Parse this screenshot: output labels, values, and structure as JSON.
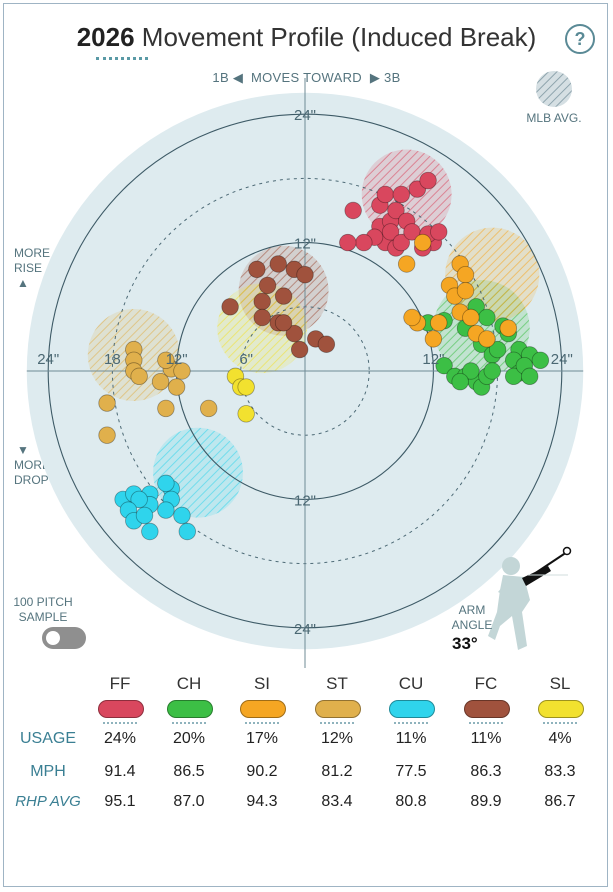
{
  "title": {
    "year": "2026",
    "text": "Movement Profile (Induced Break)"
  },
  "help_label": "?",
  "direction": {
    "left": "1B",
    "middle": "MOVES TOWARD",
    "right": "3B"
  },
  "mlb_avg_label": "MLB AVG.",
  "side_labels": {
    "rise_1": "MORE",
    "rise_2": "RISE",
    "drop_1": "MORE",
    "drop_2": "DROP"
  },
  "sample": {
    "line1": "100 PITCH",
    "line2": "SAMPLE"
  },
  "arm_angle": {
    "line1": "ARM",
    "line2": "ANGLE",
    "value": "33°"
  },
  "chart_data": {
    "type": "scatter",
    "title": "2026 Movement Profile (Induced Break)",
    "xlim": [
      -26,
      26
    ],
    "ylim": [
      -26,
      26
    ],
    "rings": [
      6,
      12,
      18,
      24
    ],
    "ring_labels": [
      {
        "text": "24\"",
        "x": 0,
        "y": 24
      },
      {
        "text": "12\"",
        "x": 0,
        "y": 12
      },
      {
        "text": "12\"",
        "x": 0,
        "y": -12
      },
      {
        "text": "24\"",
        "x": 0,
        "y": -24
      },
      {
        "text": "24\"",
        "x": -24,
        "y": 0
      },
      {
        "text": "18",
        "x": -18,
        "y": 0
      },
      {
        "text": "12\"",
        "x": -12,
        "y": 0
      },
      {
        "text": "6\"",
        "x": -5.5,
        "y": 0
      },
      {
        "text": "12\"",
        "x": 12,
        "y": 0
      },
      {
        "text": "24\"",
        "x": 24,
        "y": 0
      }
    ],
    "series": [
      {
        "name": "FF",
        "color": "#d9475e",
        "avg_zone": {
          "x": 9.5,
          "y": 16.5,
          "r": 4.2
        },
        "points": [
          [
            4.5,
            15
          ],
          [
            7,
            15.5
          ],
          [
            7.5,
            16.5
          ],
          [
            7,
            13.5
          ],
          [
            8,
            14
          ],
          [
            8.5,
            15
          ],
          [
            9,
            16.5
          ],
          [
            9.5,
            14
          ],
          [
            10.5,
            17
          ],
          [
            11.5,
            17.8
          ],
          [
            7.5,
            12
          ],
          [
            8.5,
            11.5
          ],
          [
            6.5,
            12.5
          ],
          [
            5.5,
            12
          ],
          [
            4,
            12
          ],
          [
            8,
            13
          ],
          [
            9,
            12
          ],
          [
            10,
            13
          ],
          [
            12,
            12
          ],
          [
            11,
            11.5
          ],
          [
            11.5,
            12.8
          ],
          [
            12.5,
            13
          ]
        ]
      },
      {
        "name": "CH",
        "color": "#3cbf45",
        "avg_zone": {
          "x": 16.5,
          "y": 4,
          "r": 4.5
        },
        "points": [
          [
            11.5,
            4.5
          ],
          [
            13,
            4.7
          ],
          [
            15,
            4
          ],
          [
            16,
            6
          ],
          [
            17,
            5
          ],
          [
            18.5,
            4.2
          ],
          [
            19,
            3.5
          ],
          [
            20,
            2
          ],
          [
            21,
            1.5
          ],
          [
            22,
            1
          ],
          [
            16.5,
            2.5
          ],
          [
            17.5,
            1.5
          ],
          [
            18,
            2
          ],
          [
            19.5,
            1
          ],
          [
            13,
            0.5
          ],
          [
            14,
            -0.5
          ],
          [
            15,
            -0.5
          ],
          [
            16,
            -1
          ],
          [
            16.5,
            -1.5
          ],
          [
            15.5,
            0
          ],
          [
            17,
            -0.5
          ],
          [
            17.5,
            0
          ],
          [
            20,
            -0.2
          ],
          [
            19.5,
            -0.5
          ],
          [
            20.5,
            0.5
          ],
          [
            21,
            -0.5
          ],
          [
            14.5,
            -1
          ]
        ]
      },
      {
        "name": "SI",
        "color": "#f5a623",
        "avg_zone": {
          "x": 17.5,
          "y": 9,
          "r": 4.4
        },
        "points": [
          [
            11,
            12
          ],
          [
            9.5,
            10
          ],
          [
            14.5,
            10
          ],
          [
            15,
            9
          ],
          [
            13.5,
            8
          ],
          [
            14,
            7
          ],
          [
            15,
            7.5
          ],
          [
            12.5,
            4.5
          ],
          [
            14.5,
            5.5
          ],
          [
            10.5,
            4.5
          ],
          [
            12,
            3
          ],
          [
            16,
            3.5
          ],
          [
            15.5,
            5
          ],
          [
            17,
            3
          ],
          [
            10,
            5
          ],
          [
            19,
            4
          ]
        ]
      },
      {
        "name": "ST",
        "color": "#e0b04c",
        "avg_zone": {
          "x": -16,
          "y": 1.5,
          "r": 4.3
        },
        "points": [
          [
            -16,
            2
          ],
          [
            -16,
            1
          ],
          [
            -16,
            0
          ],
          [
            -15.5,
            -0.5
          ],
          [
            -13.5,
            -1
          ],
          [
            -12.5,
            0.2
          ],
          [
            -11.5,
            0
          ],
          [
            -13,
            1
          ],
          [
            -12,
            -1.5
          ],
          [
            -18.5,
            -3
          ],
          [
            -13,
            -3.5
          ],
          [
            -9,
            -3.5
          ],
          [
            -18.5,
            -6
          ]
        ]
      },
      {
        "name": "CU",
        "color": "#2fd4ec",
        "avg_zone": {
          "x": -10,
          "y": -9.5,
          "r": 4.2
        },
        "points": [
          [
            -17,
            -12
          ],
          [
            -16,
            -11.5
          ],
          [
            -14.5,
            -11.5
          ],
          [
            -12.5,
            -11
          ],
          [
            -12.5,
            -12
          ],
          [
            -13,
            -10.5
          ],
          [
            -13,
            -13
          ],
          [
            -14.5,
            -12.5
          ],
          [
            -15.5,
            -12
          ],
          [
            -11.5,
            -13.5
          ],
          [
            -16.5,
            -13
          ],
          [
            -16,
            -14
          ],
          [
            -15,
            -13.5
          ],
          [
            -11,
            -15
          ],
          [
            -14.5,
            -15
          ]
        ]
      },
      {
        "name": "FC",
        "color": "#a0523d",
        "avg_zone": {
          "x": -2,
          "y": 7.5,
          "r": 4.2
        },
        "points": [
          [
            -4.5,
            9.5
          ],
          [
            -2.5,
            10
          ],
          [
            -1,
            9.5
          ],
          [
            0,
            9
          ],
          [
            -3.5,
            8
          ],
          [
            -2,
            7
          ],
          [
            -7,
            6
          ],
          [
            -4,
            6.5
          ],
          [
            -2.5,
            4.5
          ],
          [
            -1,
            3.5
          ],
          [
            1,
            3
          ],
          [
            -2,
            4.5
          ],
          [
            -0.5,
            2
          ],
          [
            2,
            2.5
          ],
          [
            -4,
            5
          ]
        ]
      },
      {
        "name": "SL",
        "color": "#f2e12f",
        "avg_zone": {
          "x": -4,
          "y": 4,
          "r": 4.2
        },
        "points": [
          [
            -6.5,
            -0.5
          ],
          [
            -6,
            -1.5
          ],
          [
            -5.5,
            -1.5
          ],
          [
            -5.5,
            -4
          ]
        ]
      }
    ]
  },
  "table": {
    "pitches": [
      {
        "code": "FF",
        "color": "#d9475e",
        "usage": "24%",
        "mph": "91.4",
        "rhp_avg": "95.1"
      },
      {
        "code": "CH",
        "color": "#3cbf45",
        "usage": "20%",
        "mph": "86.5",
        "rhp_avg": "87.0"
      },
      {
        "code": "SI",
        "color": "#f5a623",
        "usage": "17%",
        "mph": "90.2",
        "rhp_avg": "94.3"
      },
      {
        "code": "ST",
        "color": "#e0b04c",
        "usage": "12%",
        "mph": "81.2",
        "rhp_avg": "83.4"
      },
      {
        "code": "CU",
        "color": "#2fd4ec",
        "usage": "11%",
        "mph": "77.5",
        "rhp_avg": "80.8"
      },
      {
        "code": "FC",
        "color": "#a0523d",
        "usage": "11%",
        "mph": "86.3",
        "rhp_avg": "89.9"
      },
      {
        "code": "SL",
        "color": "#f2e12f",
        "usage": "4%",
        "mph": "83.3",
        "rhp_avg": "86.7"
      }
    ],
    "labels": {
      "usage": "USAGE",
      "mph": "MPH",
      "rhp_avg": "RHP AVG"
    }
  }
}
